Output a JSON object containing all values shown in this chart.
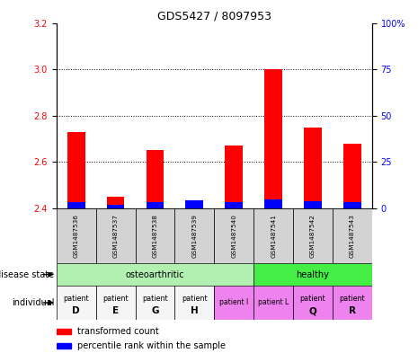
{
  "title": "GDS5427 / 8097953",
  "samples": [
    "GSM1487536",
    "GSM1487537",
    "GSM1487538",
    "GSM1487539",
    "GSM1487540",
    "GSM1487541",
    "GSM1487542",
    "GSM1487543"
  ],
  "red_values": [
    2.73,
    2.45,
    2.65,
    2.4,
    2.67,
    3.0,
    2.75,
    2.68
  ],
  "blue_values": [
    2.425,
    2.415,
    2.425,
    2.435,
    2.425,
    2.44,
    2.43,
    2.425
  ],
  "ymin": 2.4,
  "ymax": 3.2,
  "yticks_left": [
    2.4,
    2.6,
    2.8,
    3.0,
    3.2
  ],
  "yticks_right_pct": [
    0,
    25,
    50,
    75,
    100
  ],
  "grid_lines": [
    2.6,
    2.8,
    3.0
  ],
  "osteo_color": "#b2f0b2",
  "healthy_color": "#44ee44",
  "ind_colors_white": [
    "#f5f5f5",
    "#f5f5f5",
    "#f5f5f5",
    "#f5f5f5"
  ],
  "ind_colors_pink": [
    "#ee82ee",
    "#ee82ee",
    "#ee82ee",
    "#ee82ee"
  ],
  "individual_labels": [
    [
      "patient",
      "D"
    ],
    [
      "patient",
      "E"
    ],
    [
      "patient",
      "G"
    ],
    [
      "patient",
      "H"
    ],
    [
      "patient I",
      ""
    ],
    [
      "patient L",
      ""
    ],
    [
      "patient",
      "Q"
    ],
    [
      "patient",
      "R"
    ]
  ],
  "legend_red": "transformed count",
  "legend_blue": "percentile rank within the sample",
  "bar_width": 0.45,
  "base_value": 2.4,
  "sample_box_color": "#d3d3d3"
}
